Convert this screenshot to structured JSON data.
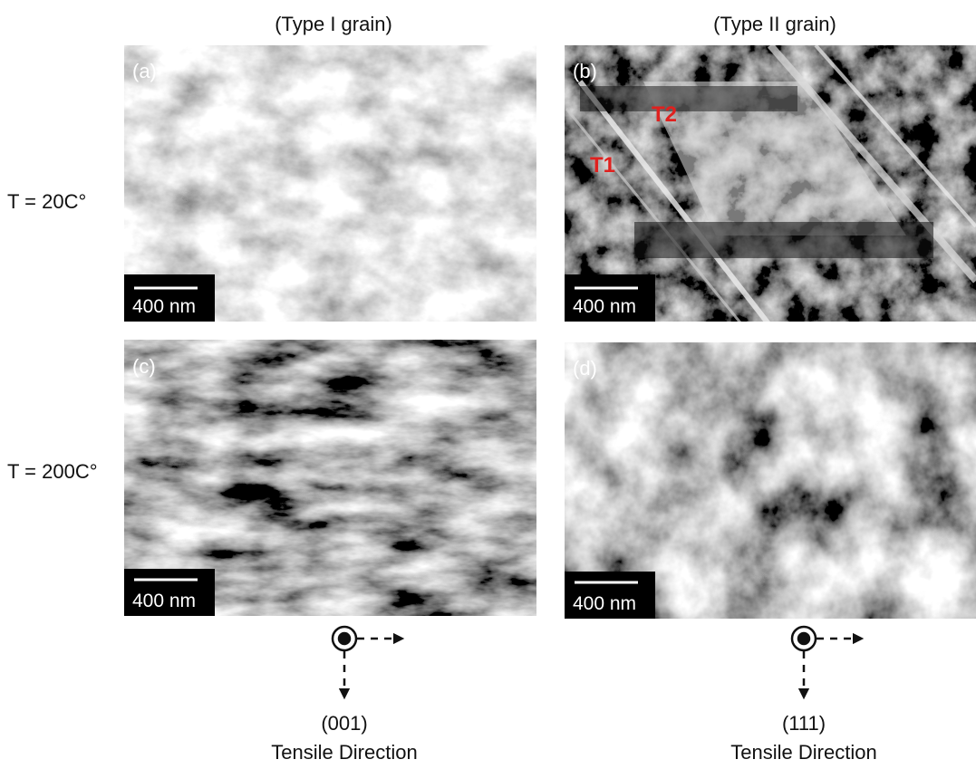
{
  "columns": [
    "(Type I grain)",
    "(Type II grain)"
  ],
  "rows": [
    "T = 20C°",
    "T = 200C°"
  ],
  "panels": [
    {
      "label": "(a)",
      "scale": "400 nm"
    },
    {
      "label": "(b)",
      "scale": "400 nm",
      "annotations": [
        "T1",
        "T2"
      ]
    },
    {
      "label": "(c)",
      "scale": "400 nm"
    },
    {
      "label": "(d)",
      "scale": "400 nm"
    }
  ],
  "directions": [
    {
      "plane": "(001)",
      "caption": "Tensile Direction"
    },
    {
      "plane": "(111)",
      "caption": "Tensile Direction"
    }
  ]
}
